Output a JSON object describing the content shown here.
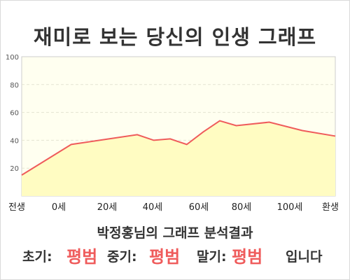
{
  "title": "재미로 보는 당신의 인생 그래프",
  "chart_data": {
    "type": "area",
    "title": "재미로 보는 당신의 인생 그래프",
    "categories": [
      "전생",
      "0세",
      "20세",
      "40세",
      "60세",
      "80세",
      "100세",
      "환생"
    ],
    "x": [
      -15,
      0,
      10,
      20,
      25,
      30,
      35,
      40,
      45,
      50,
      60,
      70,
      80
    ],
    "y": [
      15,
      37,
      40.5,
      44,
      40,
      41,
      37,
      46,
      54,
      50.5,
      53,
      47,
      43
    ],
    "ylim": [
      0,
      100
    ],
    "yticks": [
      20,
      40,
      60,
      80,
      100
    ],
    "grid": true,
    "colors": {
      "line": "#ef5b5b",
      "fill": "#fffcc2",
      "plot_bg": "#fffff0"
    }
  },
  "summary": {
    "heading": "박정홍님의 그래프 분석결과",
    "early_label": "초기:",
    "early_value": "평범",
    "middle_label": "중기:",
    "middle_value": "평범",
    "late_label": "말기:",
    "late_value": "평범",
    "closing": "입니다"
  }
}
